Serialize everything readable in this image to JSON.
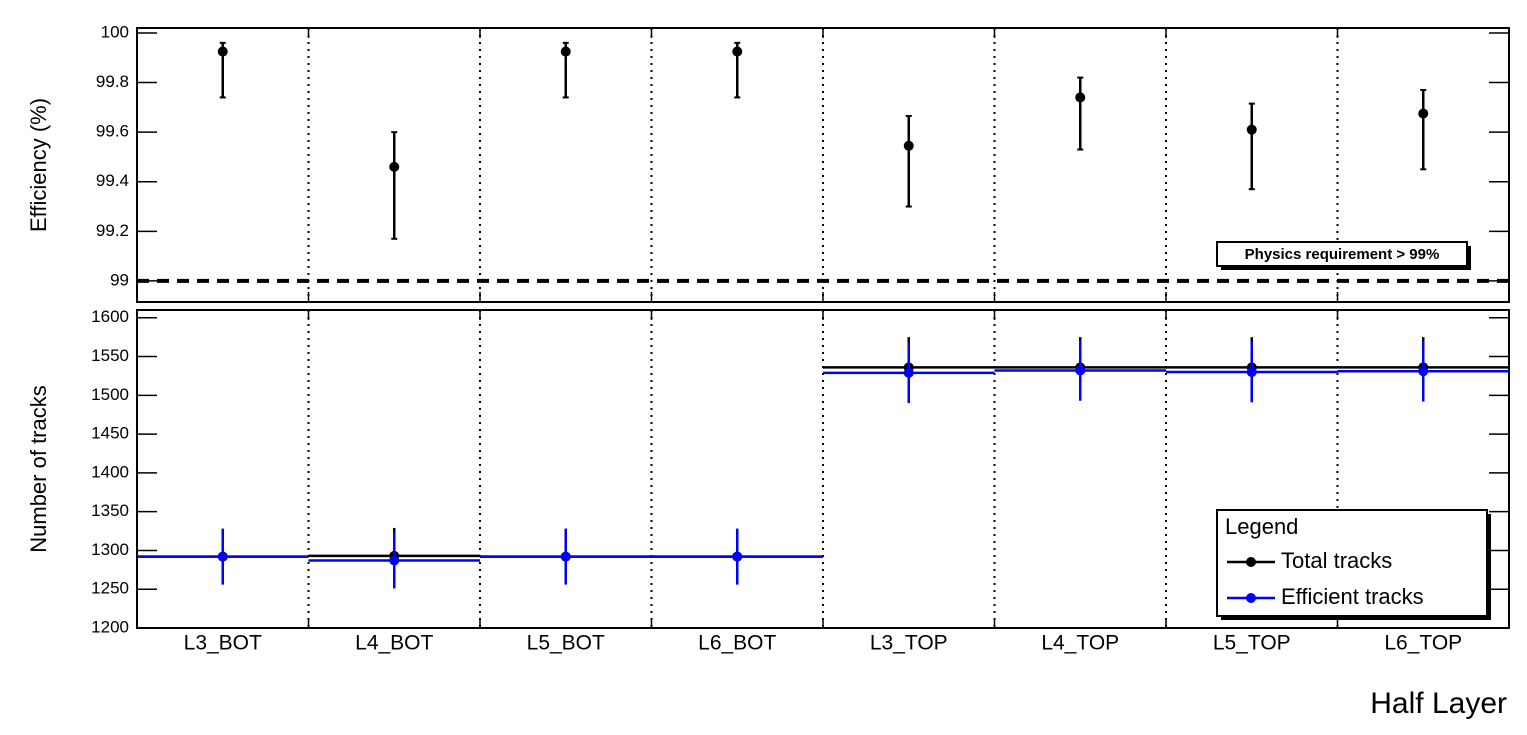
{
  "chart_data": [
    {
      "type": "errorbar",
      "ylabel": "Efficiency (%)",
      "values": [
        99.925,
        99.46,
        99.925,
        99.925,
        99.545,
        99.74,
        99.61,
        99.675
      ],
      "error_low": [
        0.185,
        0.29,
        0.185,
        0.185,
        0.245,
        0.21,
        0.24,
        0.225
      ],
      "error_high": [
        0.035,
        0.14,
        0.035,
        0.035,
        0.12,
        0.08,
        0.105,
        0.095
      ],
      "color": "#000000",
      "ylim": [
        98.915,
        100.02
      ],
      "yticks": [
        99,
        99.2,
        99.4,
        99.6,
        99.8,
        100
      ],
      "threshold": 99,
      "annotation": "Physics requirement > 99%"
    },
    {
      "type": "hist_errorbar",
      "ylabel": "Number of tracks",
      "xlabel": "Half Layer",
      "categories": [
        "L3_BOT",
        "L4_BOT",
        "L5_BOT",
        "L6_BOT",
        "L3_TOP",
        "L4_TOP",
        "L5_TOP",
        "L6_TOP"
      ],
      "series": [
        {
          "name": "Total tracks",
          "color": "#000000",
          "values": [
            1292,
            1293,
            1292,
            1292,
            1536,
            1536,
            1536,
            1536
          ],
          "errors": [
            36,
            36,
            36,
            36,
            39,
            39,
            39,
            39
          ]
        },
        {
          "name": "Efficient tracks",
          "color": "#0000ff",
          "values": [
            1292,
            1287,
            1292,
            1292,
            1529,
            1532,
            1530,
            1531
          ],
          "errors": [
            36,
            36,
            36,
            36,
            39,
            39,
            39,
            39
          ]
        }
      ],
      "ylim": [
        1200,
        1610
      ],
      "yticks": [
        1200,
        1250,
        1300,
        1350,
        1400,
        1450,
        1500,
        1550,
        1600
      ],
      "legend": "bottom-right",
      "legend_title": "Legend"
    }
  ]
}
